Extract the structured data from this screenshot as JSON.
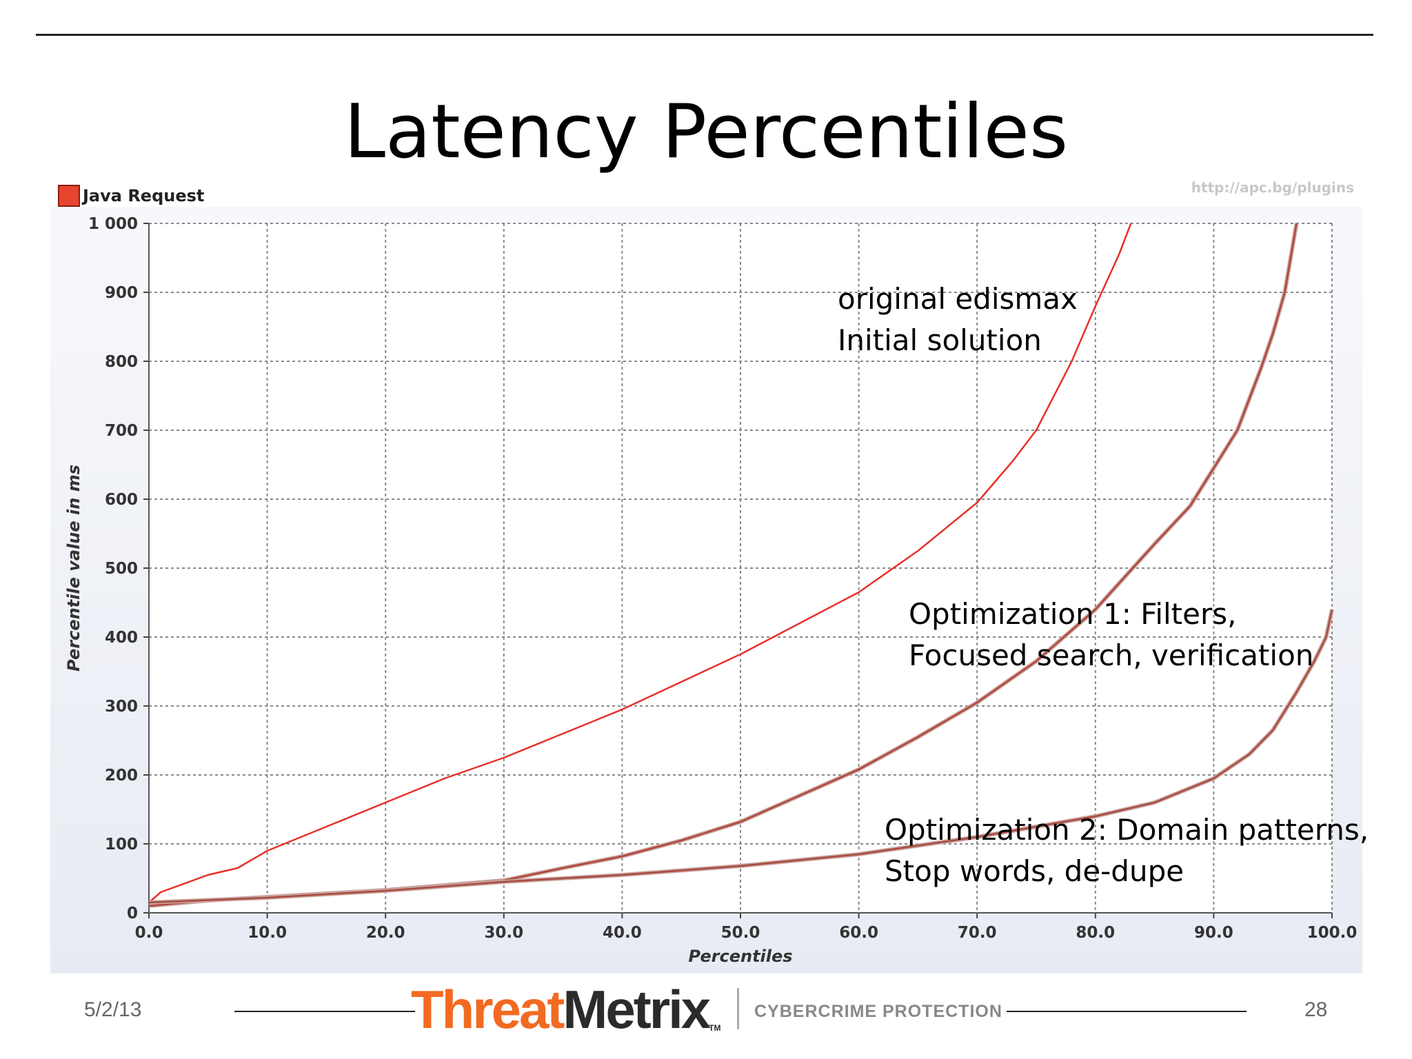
{
  "slide": {
    "title": "Latency Percentiles",
    "date": "5/2/13",
    "page_number": "28"
  },
  "legend": {
    "label": "Java Request",
    "color": "#e8452f"
  },
  "chart_url": "http://apc.bg/plugins",
  "annotations": {
    "a1": {
      "line1": "original edismax",
      "line2": "Initial solution"
    },
    "a2": {
      "line1": "Optimization 1: Filters,",
      "line2": "Focused search, verification"
    },
    "a3": {
      "line1": "Optimization 2: Domain patterns,",
      "line2": "Stop words, de-dupe"
    }
  },
  "brand": {
    "name_part1": "Threat",
    "name_part2": "Metrix",
    "trademark": "TM",
    "tagline": "CYBERCRIME PROTECTION"
  },
  "chart_data": {
    "type": "line",
    "xlabel": "Percentiles",
    "ylabel": "Percentile value in ms",
    "xlim": [
      0,
      100
    ],
    "ylim": [
      0,
      1000
    ],
    "x_ticks": [
      "0.0",
      "10.0",
      "20.0",
      "30.0",
      "40.0",
      "50.0",
      "60.0",
      "70.0",
      "80.0",
      "90.0",
      "100.0"
    ],
    "y_ticks": [
      "0",
      "100",
      "200",
      "300",
      "400",
      "500",
      "600",
      "700",
      "800",
      "900",
      "1 000"
    ],
    "grid": true,
    "legend_position": "top-left",
    "series": [
      {
        "name": "",
        "color": "#e8302a",
        "x": [
          0,
          1,
          5,
          7.5,
          10,
          15,
          20,
          25,
          30,
          35,
          40,
          45,
          50,
          55,
          60,
          65,
          70,
          73,
          75,
          78,
          80,
          82,
          83
        ],
        "y": [
          15,
          30,
          55,
          65,
          90,
          125,
          160,
          195,
          225,
          260,
          295,
          335,
          375,
          420,
          465,
          525,
          595,
          655,
          700,
          800,
          880,
          955,
          1000
        ]
      },
      {
        "name": "",
        "color": "#b0453a",
        "x": [
          0,
          5,
          10,
          20,
          30,
          35,
          40,
          45,
          50,
          55,
          60,
          65,
          70,
          75,
          80,
          85,
          88,
          90,
          92,
          94,
          95,
          96,
          97
        ],
        "y": [
          10,
          18,
          23,
          33,
          47,
          65,
          82,
          105,
          132,
          170,
          208,
          255,
          305,
          365,
          440,
          535,
          590,
          645,
          700,
          790,
          840,
          900,
          1000
        ]
      },
      {
        "name": "",
        "color": "#a84a40",
        "x": [
          0,
          10,
          20,
          30,
          40,
          50,
          60,
          70,
          80,
          85,
          90,
          93,
          95,
          97,
          98.5,
          99.5,
          100
        ],
        "y": [
          15,
          22,
          32,
          45,
          55,
          68,
          85,
          110,
          140,
          160,
          195,
          230,
          265,
          320,
          365,
          400,
          440
        ]
      }
    ]
  }
}
